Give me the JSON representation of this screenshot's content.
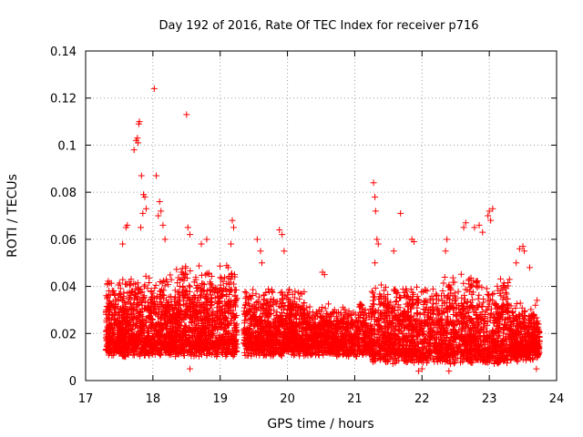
{
  "chart_data": {
    "type": "scatter",
    "title": "Day 192 of 2016, Rate Of TEC Index for receiver p716",
    "xlabel": "GPS time / hours",
    "ylabel": "ROTI / TECUs",
    "xlim": [
      17,
      24
    ],
    "ylim": [
      0,
      0.14
    ],
    "xticks": [
      "17",
      "18",
      "19",
      "20",
      "21",
      "22",
      "23",
      "24"
    ],
    "yticks": [
      "0",
      "0.02",
      "0.04",
      "0.06",
      "0.08",
      "0.1",
      "0.12",
      "0.14"
    ],
    "grid": true,
    "marker": "+",
    "color": "#ff0000",
    "series": [
      {
        "name": "ROTI",
        "points": [
          [
            17.72,
            0.098
          ],
          [
            17.75,
            0.102
          ],
          [
            17.77,
            0.103
          ],
          [
            17.78,
            0.101
          ],
          [
            17.79,
            0.109
          ],
          [
            17.8,
            0.11
          ],
          [
            17.83,
            0.087
          ],
          [
            17.86,
            0.079
          ],
          [
            17.88,
            0.078
          ],
          [
            17.9,
            0.073
          ],
          [
            17.85,
            0.071
          ],
          [
            17.82,
            0.065
          ],
          [
            17.6,
            0.065
          ],
          [
            17.62,
            0.066
          ],
          [
            17.55,
            0.058
          ],
          [
            18.02,
            0.124
          ],
          [
            18.5,
            0.113
          ],
          [
            18.05,
            0.087
          ],
          [
            18.08,
            0.07
          ],
          [
            18.12,
            0.072
          ],
          [
            18.15,
            0.066
          ],
          [
            18.1,
            0.076
          ],
          [
            18.18,
            0.06
          ],
          [
            18.52,
            0.065
          ],
          [
            18.55,
            0.062
          ],
          [
            18.72,
            0.058
          ],
          [
            18.8,
            0.06
          ],
          [
            19.18,
            0.068
          ],
          [
            19.2,
            0.065
          ],
          [
            19.16,
            0.058
          ],
          [
            19.55,
            0.06
          ],
          [
            19.6,
            0.055
          ],
          [
            19.62,
            0.05
          ],
          [
            19.88,
            0.064
          ],
          [
            19.92,
            0.062
          ],
          [
            19.95,
            0.055
          ],
          [
            20.52,
            0.046
          ],
          [
            20.55,
            0.045
          ],
          [
            21.28,
            0.084
          ],
          [
            21.3,
            0.078
          ],
          [
            21.31,
            0.072
          ],
          [
            21.33,
            0.06
          ],
          [
            21.35,
            0.058
          ],
          [
            21.3,
            0.05
          ],
          [
            21.68,
            0.071
          ],
          [
            21.58,
            0.055
          ],
          [
            21.85,
            0.06
          ],
          [
            21.88,
            0.059
          ],
          [
            22.35,
            0.055
          ],
          [
            22.37,
            0.06
          ],
          [
            22.62,
            0.065
          ],
          [
            22.65,
            0.067
          ],
          [
            22.78,
            0.065
          ],
          [
            22.85,
            0.066
          ],
          [
            22.9,
            0.063
          ],
          [
            22.98,
            0.07
          ],
          [
            23.0,
            0.072
          ],
          [
            23.02,
            0.068
          ],
          [
            23.05,
            0.073
          ],
          [
            23.45,
            0.056
          ],
          [
            23.5,
            0.057
          ],
          [
            23.52,
            0.055
          ],
          [
            23.4,
            0.05
          ],
          [
            23.3,
            0.043
          ],
          [
            23.6,
            0.048
          ],
          [
            18.55,
            0.005
          ],
          [
            21.95,
            0.004
          ],
          [
            22.0,
            0.005
          ],
          [
            22.4,
            0.004
          ],
          [
            23.7,
            0.005
          ]
        ]
      }
    ],
    "clusters": [
      {
        "x0": 17.3,
        "x1": 18.35,
        "y_min": 0.008,
        "y_max": 0.046,
        "density": 1100
      },
      {
        "x0": 18.35,
        "x1": 19.25,
        "y_min": 0.008,
        "y_max": 0.05,
        "density": 950
      },
      {
        "x0": 19.35,
        "x1": 20.25,
        "y_min": 0.008,
        "y_max": 0.04,
        "density": 900
      },
      {
        "x0": 20.25,
        "x1": 21.25,
        "y_min": 0.008,
        "y_max": 0.034,
        "density": 850
      },
      {
        "x0": 21.25,
        "x1": 22.25,
        "y_min": 0.005,
        "y_max": 0.042,
        "density": 900
      },
      {
        "x0": 22.25,
        "x1": 23.3,
        "y_min": 0.005,
        "y_max": 0.046,
        "density": 950
      },
      {
        "x0": 23.3,
        "x1": 23.75,
        "y_min": 0.006,
        "y_max": 0.035,
        "density": 450
      }
    ]
  }
}
